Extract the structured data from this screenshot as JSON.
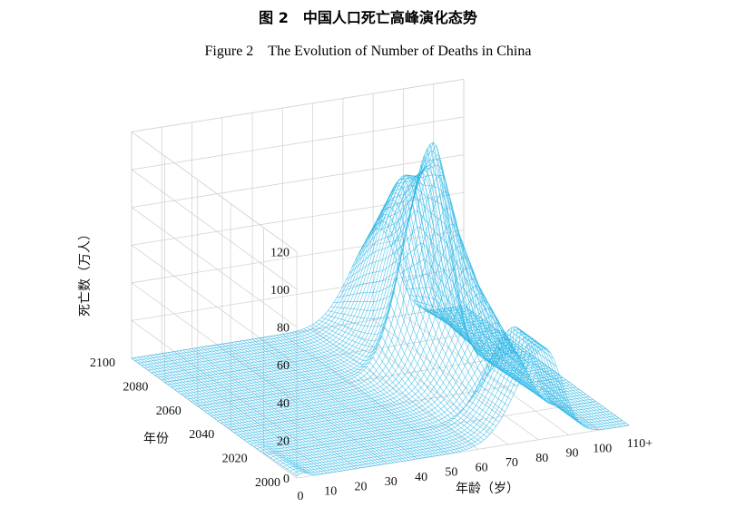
{
  "title_cn": "图 2　中国人口死亡高峰演化态势",
  "title_en": "Figure 2　The Evolution of Number of Deaths in China",
  "chart_data": {
    "type": "surface",
    "title": "Figure 2　The Evolution of Number of Deaths in China",
    "xlabel": "年龄（岁）",
    "ylabel": "年份",
    "zlabel": "死亡数（万人）",
    "x_ticks": [
      "0",
      "10",
      "20",
      "30",
      "40",
      "50",
      "60",
      "70",
      "80",
      "90",
      "100",
      "110+"
    ],
    "y_ticks": [
      "2000",
      "2020",
      "2040",
      "2060",
      "2080",
      "2100"
    ],
    "z_ticks": [
      "0",
      "20",
      "40",
      "60",
      "80",
      "100",
      "120"
    ],
    "xlim": [
      0,
      110
    ],
    "ylim": [
      2000,
      2100
    ],
    "zlim": [
      0,
      120
    ],
    "grid": true,
    "surface_color": "#29b6e6",
    "peaks": [
      {
        "year": 2020,
        "age": 82,
        "deaths": 33
      },
      {
        "year": 2040,
        "age": 80,
        "deaths": 60
      },
      {
        "year": 2050,
        "age": 79,
        "deaths": 83
      },
      {
        "year": 2060,
        "age": 78,
        "deaths": 120
      },
      {
        "year": 2065,
        "age": 80,
        "deaths": 105
      },
      {
        "year": 2075,
        "age": 81,
        "deaths": 92
      },
      {
        "year": 2085,
        "age": 82,
        "deaths": 86
      },
      {
        "year": 2100,
        "age": 82,
        "deaths": 48
      }
    ]
  }
}
